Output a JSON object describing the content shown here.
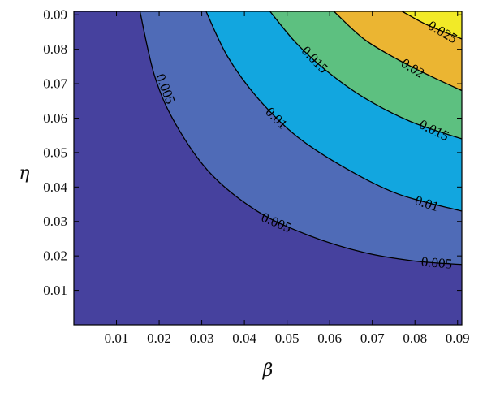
{
  "chart_data": {
    "type": "contour",
    "title": "",
    "xlabel": "β",
    "ylabel": "η",
    "xlim": [
      0.0,
      0.091
    ],
    "ylim": [
      0.0,
      0.091
    ],
    "xticks": [
      0.01,
      0.02,
      0.03,
      0.04,
      0.05,
      0.06,
      0.07,
      0.08,
      0.09
    ],
    "xtick_labels": [
      "0.01",
      "0.02",
      "0.03",
      "0.04",
      "0.05",
      "0.06",
      "0.07",
      "0.08",
      "0.09"
    ],
    "yticks": [
      0.01,
      0.02,
      0.03,
      0.04,
      0.05,
      0.06,
      0.07,
      0.08,
      0.09
    ],
    "ytick_labels": [
      "0.01",
      "0.02",
      "0.03",
      "0.04",
      "0.05",
      "0.06",
      "0.07",
      "0.08",
      "0.09"
    ],
    "levels": [
      {
        "value": 0.005,
        "label": "0.005",
        "fill": "#46419e",
        "points": [
          [
            0.0155,
            0.091
          ],
          [
            0.019,
            0.072
          ],
          [
            0.024,
            0.058
          ],
          [
            0.032,
            0.044
          ],
          [
            0.043,
            0.033
          ],
          [
            0.055,
            0.026
          ],
          [
            0.068,
            0.021
          ],
          [
            0.08,
            0.0185
          ],
          [
            0.091,
            0.0175
          ]
        ]
      },
      {
        "value": 0.01,
        "label": "0.01",
        "fill": "#4f6bb7",
        "points": [
          [
            0.031,
            0.091
          ],
          [
            0.036,
            0.078
          ],
          [
            0.043,
            0.066
          ],
          [
            0.052,
            0.055
          ],
          [
            0.063,
            0.046
          ],
          [
            0.076,
            0.038
          ],
          [
            0.091,
            0.033
          ]
        ]
      },
      {
        "value": 0.015,
        "label": "0.015",
        "fill": "#12a6df",
        "points": [
          [
            0.046,
            0.091
          ],
          [
            0.052,
            0.082
          ],
          [
            0.059,
            0.074
          ],
          [
            0.068,
            0.066
          ],
          [
            0.079,
            0.059
          ],
          [
            0.091,
            0.054
          ]
        ]
      },
      {
        "value": 0.02,
        "label": "0.02",
        "fill": "#5dc080",
        "points": [
          [
            0.061,
            0.091
          ],
          [
            0.068,
            0.083
          ],
          [
            0.076,
            0.077
          ],
          [
            0.084,
            0.072
          ],
          [
            0.091,
            0.068
          ]
        ]
      },
      {
        "value": 0.025,
        "label": "0.025",
        "fill": "#ebb532",
        "points": [
          [
            0.077,
            0.091
          ],
          [
            0.083,
            0.087
          ],
          [
            0.091,
            0.083
          ]
        ]
      }
    ],
    "top_fill": "#f2ea27",
    "inline_labels": [
      {
        "text": "0.005",
        "x": 0.0215,
        "y": 0.0685,
        "angle": 68
      },
      {
        "text": "0.005",
        "x": 0.0475,
        "y": 0.0297,
        "angle": 23
      },
      {
        "text": "0.005",
        "x": 0.0851,
        "y": 0.018,
        "angle": 5
      },
      {
        "text": "0.01",
        "x": 0.0475,
        "y": 0.06,
        "angle": 45
      },
      {
        "text": "0.01",
        "x": 0.0828,
        "y": 0.0352,
        "angle": 18
      },
      {
        "text": "0.015",
        "x": 0.0565,
        "y": 0.077,
        "angle": 46
      },
      {
        "text": "0.015",
        "x": 0.0845,
        "y": 0.0565,
        "angle": 26
      },
      {
        "text": "0.02",
        "x": 0.0795,
        "y": 0.0745,
        "angle": 32
      },
      {
        "text": "0.025",
        "x": 0.0865,
        "y": 0.085,
        "angle": 30
      }
    ],
    "grid": false,
    "legend": "none"
  }
}
